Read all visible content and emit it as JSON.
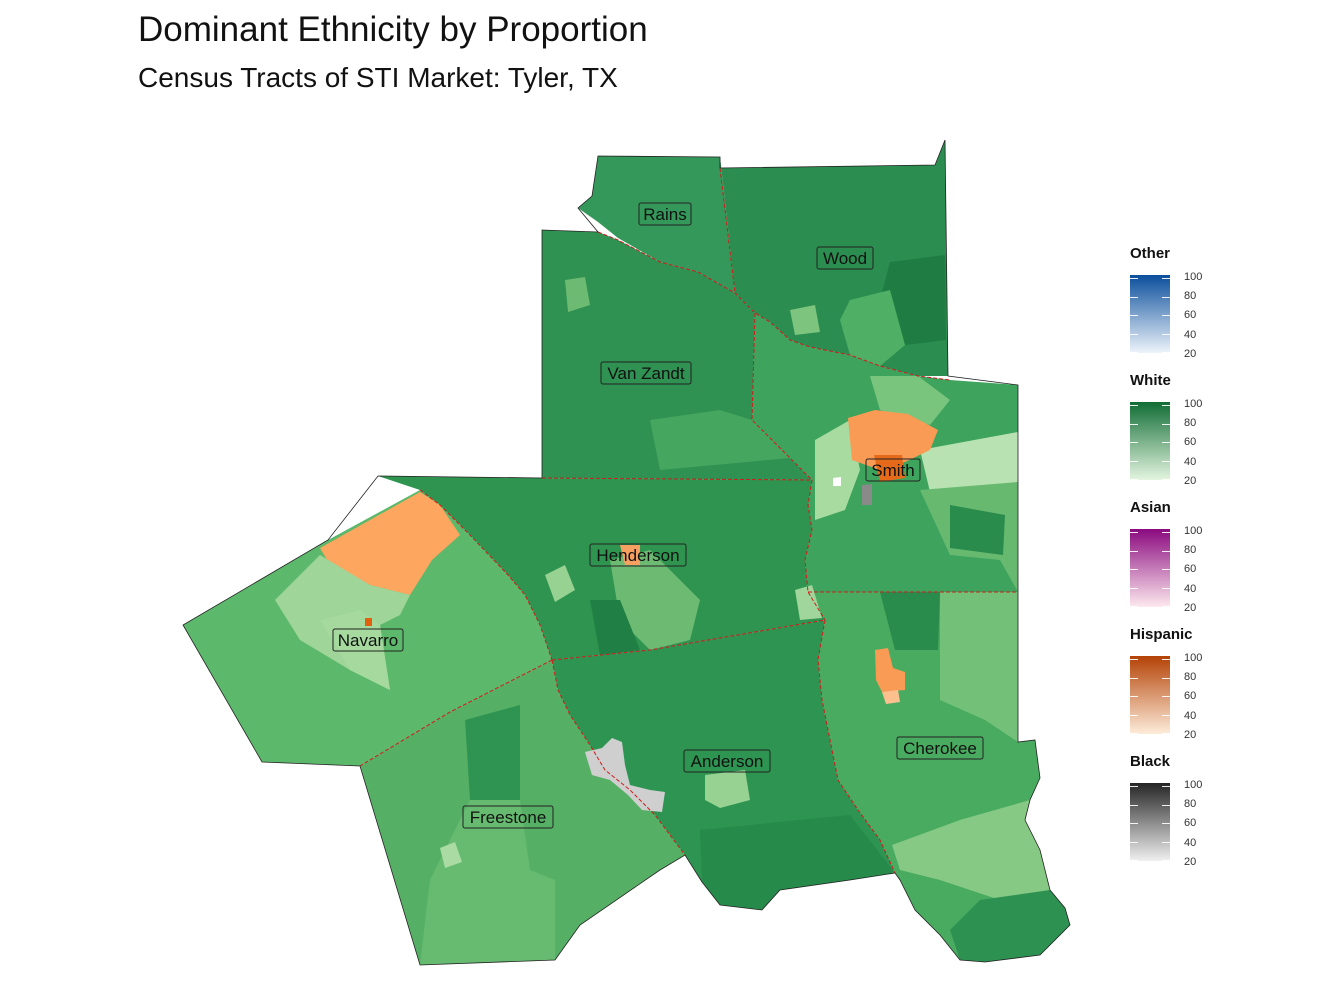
{
  "title": "Dominant Ethnicity by Proportion",
  "subtitle": "Census Tracts of STI Market: Tyler, TX",
  "counties": [
    {
      "name": "Rains",
      "fill": "#34985a"
    },
    {
      "name": "Wood",
      "fill": "#2b8d4f"
    },
    {
      "name": "Van Zandt",
      "fill": "#2f9152"
    },
    {
      "name": "Smith",
      "fill": "#3da35d"
    },
    {
      "name": "Henderson",
      "fill": "#2f944f"
    },
    {
      "name": "Navarro",
      "fill": "#5cb86b"
    },
    {
      "name": "Anderson",
      "fill": "#2e9451"
    },
    {
      "name": "Freestone",
      "fill": "#55b065"
    },
    {
      "name": "Cherokee",
      "fill": "#48ab60"
    }
  ],
  "legend": [
    {
      "title": "Other",
      "color_low": "#eef4fb",
      "color_high": "#0b4f9c",
      "ticks": [
        "100",
        "80",
        "60",
        "40",
        "20"
      ]
    },
    {
      "title": "White",
      "color_low": "#e4f5e0",
      "color_high": "#116d35",
      "ticks": [
        "100",
        "80",
        "60",
        "40",
        "20"
      ]
    },
    {
      "title": "Asian",
      "color_low": "#fde9ee",
      "color_high": "#8a0a7f",
      "ticks": [
        "100",
        "80",
        "60",
        "40",
        "20"
      ]
    },
    {
      "title": "Hispanic",
      "color_low": "#fdecda",
      "color_high": "#b44206",
      "ticks": [
        "100",
        "80",
        "60",
        "40",
        "20"
      ]
    },
    {
      "title": "Black",
      "color_low": "#f0f0f0",
      "color_high": "#252525",
      "ticks": [
        "100",
        "80",
        "60",
        "40",
        "20"
      ]
    }
  ],
  "colors": {
    "county_border": "#d01c1c",
    "hispanic_tract": "#f99a55",
    "hispanic_dark": "#e0600e",
    "black_tract": "#cfcfcf",
    "light_white": "#a7dba0"
  }
}
